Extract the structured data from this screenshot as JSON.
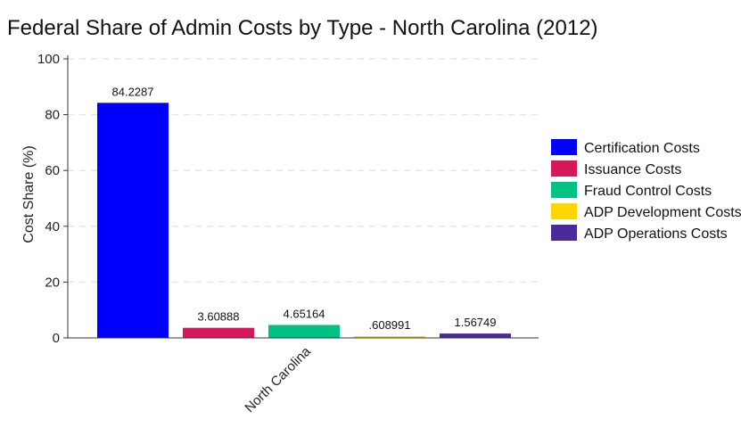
{
  "chart_data": {
    "type": "bar",
    "title": "Federal Share of Admin Costs by Type - North Carolina (2012)",
    "ylabel": "Cost Share (%)",
    "xlabel": "",
    "categories": [
      "North Carolina"
    ],
    "ylim": [
      0,
      100
    ],
    "yticks": [
      0,
      20,
      40,
      60,
      80,
      100
    ],
    "grid": "horizontal dashed",
    "legend_position": "right",
    "series": [
      {
        "name": "Certification Costs",
        "values": [
          84.2287
        ],
        "label": "84.2287",
        "color": "#0000ff"
      },
      {
        "name": "Issuance Costs",
        "values": [
          3.60888
        ],
        "label": "3.60888",
        "color": "#d6185a"
      },
      {
        "name": "Fraud Control Costs",
        "values": [
          4.65164
        ],
        "label": "4.65164",
        "color": "#00c282"
      },
      {
        "name": "ADP Development Costs",
        "values": [
          0.608991
        ],
        "label": ".608991",
        "color": "#ffd700"
      },
      {
        "name": "ADP Operations Costs",
        "values": [
          1.56749
        ],
        "label": "1.56749",
        "color": "#4b2a9a"
      }
    ]
  }
}
